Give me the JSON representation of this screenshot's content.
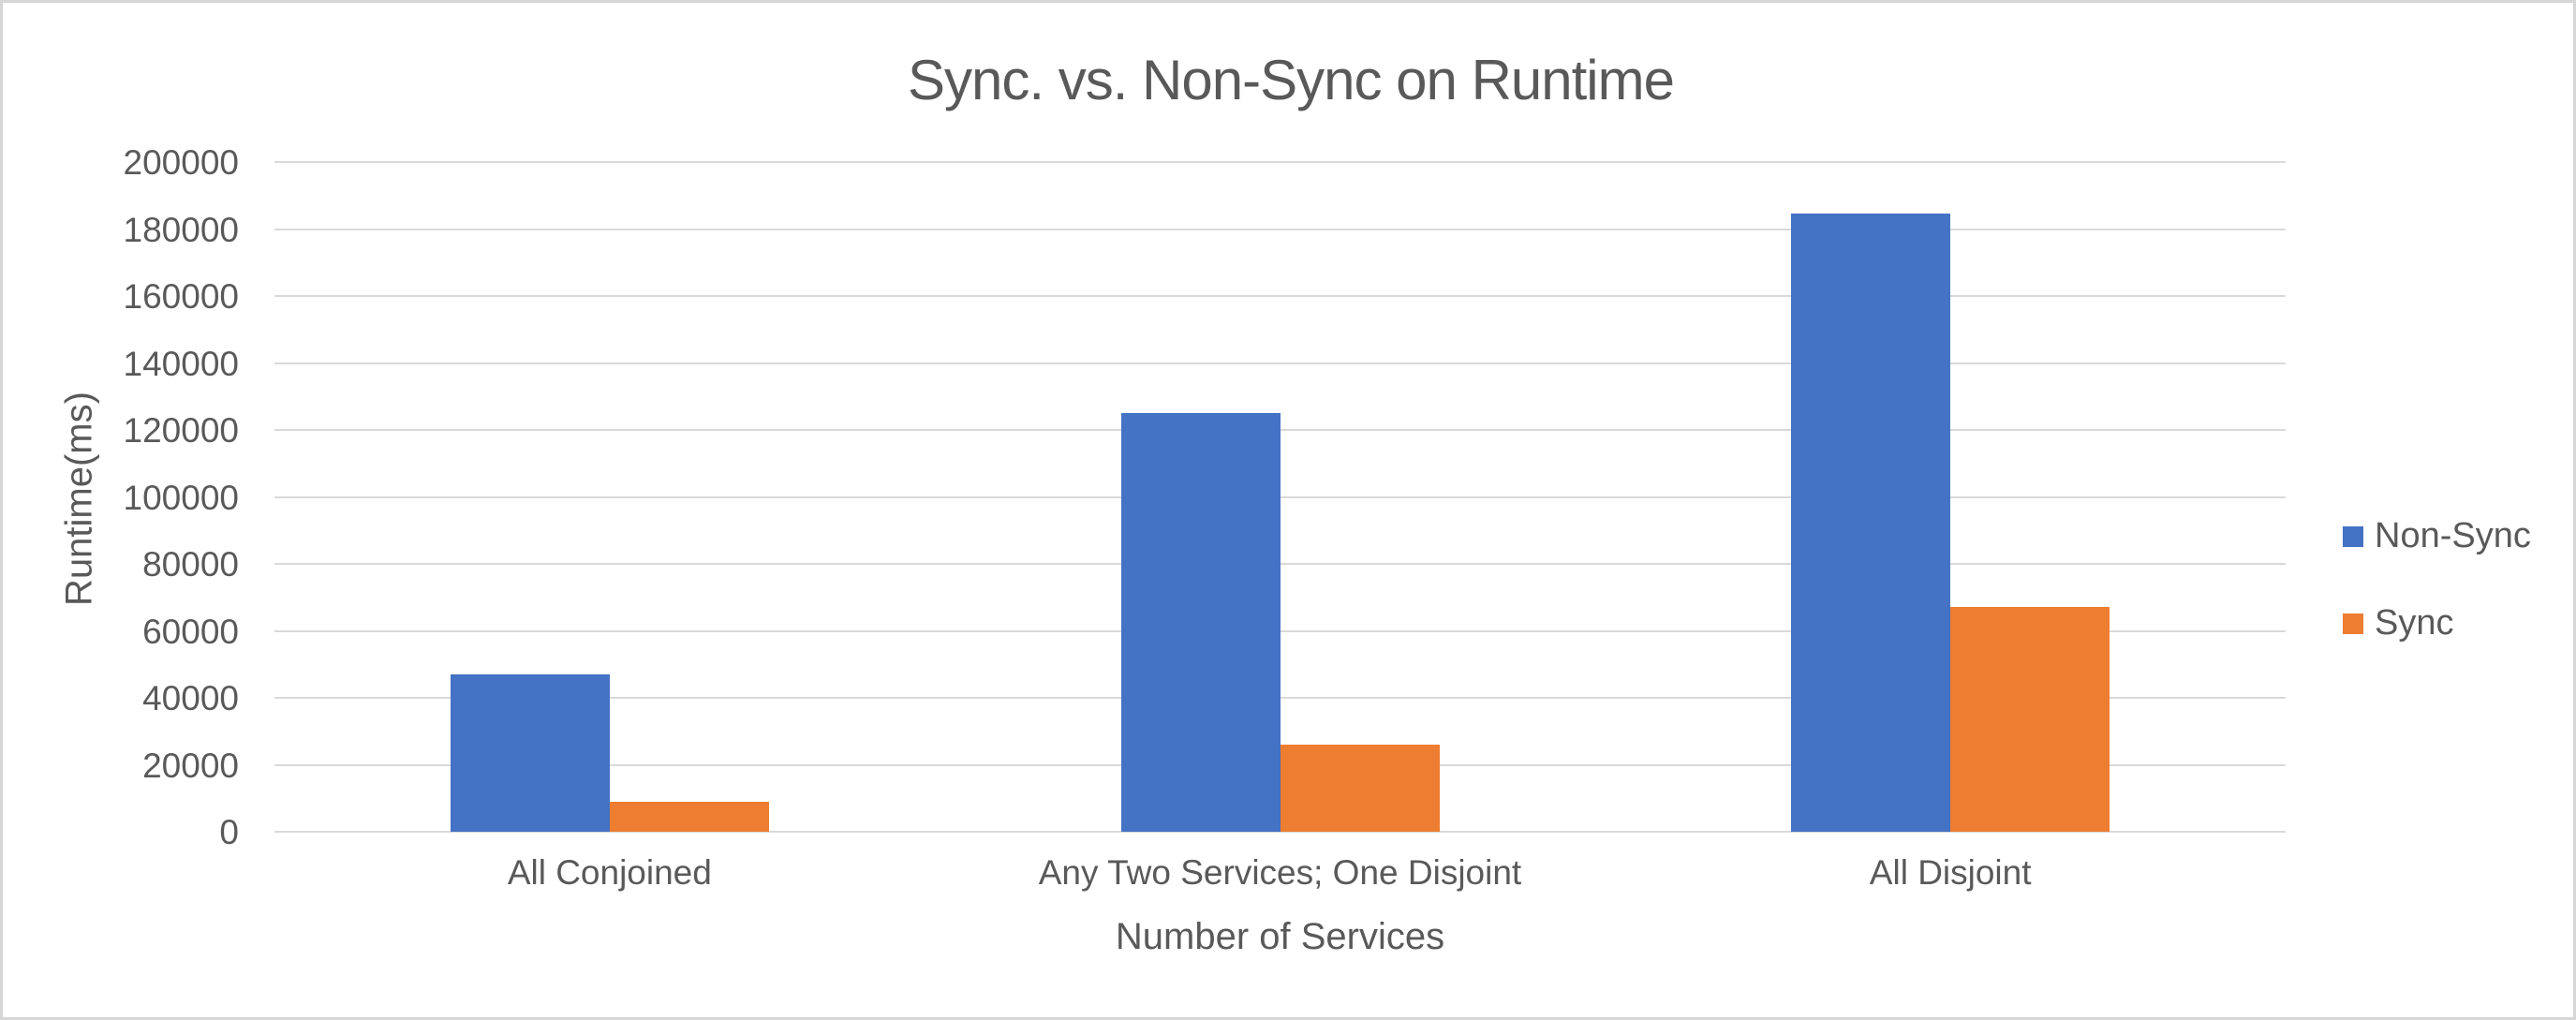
{
  "chart": {
    "title": "Sync. vs. Non-Sync on Runtime",
    "x_axis_title": "Number of Services",
    "y_axis_title": "Runtime(ms)"
  },
  "chart_data": {
    "type": "bar",
    "title": "Sync. vs. Non-Sync on Runtime",
    "xlabel": "Number of Services",
    "ylabel": "Runtime(ms)",
    "categories": [
      "All Conjoined",
      "Any Two Services; One Disjoint",
      "All Disjoint"
    ],
    "series": [
      {
        "name": "Non-Sync",
        "color": "#4472C4",
        "values": [
          47000,
          125000,
          184500
        ]
      },
      {
        "name": "Sync",
        "color": "#ED7D31",
        "values": [
          9000,
          26000,
          67000
        ]
      }
    ],
    "ylim": [
      0,
      200000
    ],
    "y_tick_step": 20000,
    "y_tick_labels": [
      "0",
      "20000",
      "40000",
      "60000",
      "80000",
      "100000",
      "120000",
      "140000",
      "160000",
      "180000",
      "200000"
    ],
    "grid": true,
    "legend_position": "right"
  },
  "colors": {
    "text": "#595959",
    "gridline": "#D9D9D9",
    "frame_border": "#D6D6D6",
    "background": "#FFFFFF"
  }
}
